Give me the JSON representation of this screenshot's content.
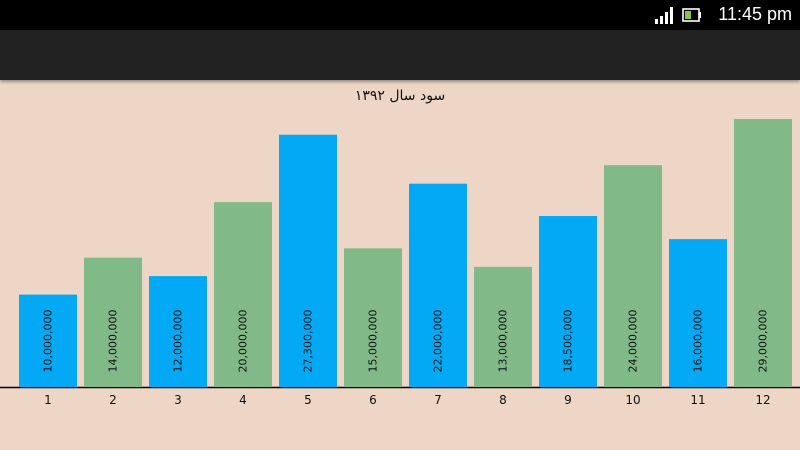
{
  "status_bar": {
    "time": "11:45 pm",
    "icons": [
      "signal-icon",
      "battery-icon"
    ]
  },
  "colors": {
    "blue": "#03A9F4",
    "green": "#81BA88",
    "background": "#EDD6C6",
    "axis": "#000000"
  },
  "chart_data": {
    "type": "bar",
    "title": "سود سال ۱۳۹۲",
    "xlabel": "",
    "ylabel": "",
    "categories": [
      "1",
      "2",
      "3",
      "4",
      "5",
      "6",
      "7",
      "8",
      "9",
      "10",
      "11",
      "12"
    ],
    "values": [
      10000000,
      14000000,
      12000000,
      20000000,
      27300000,
      15000000,
      22000000,
      13000000,
      18500000,
      24000000,
      16000000,
      29000000
    ],
    "value_labels": [
      "10,000,000",
      "14,000,000",
      "12,000,000",
      "20,000,000",
      "27,300,000",
      "15,000,000",
      "22,000,000",
      "13,000,000",
      "18,500,000",
      "24,000,000",
      "16,000,000",
      "29,000,000"
    ],
    "bar_colors": [
      "blue",
      "green",
      "blue",
      "green",
      "blue",
      "green",
      "blue",
      "green",
      "blue",
      "green",
      "blue",
      "green"
    ],
    "ylim": [
      0,
      29000000
    ],
    "grid": false,
    "legend": "none"
  }
}
